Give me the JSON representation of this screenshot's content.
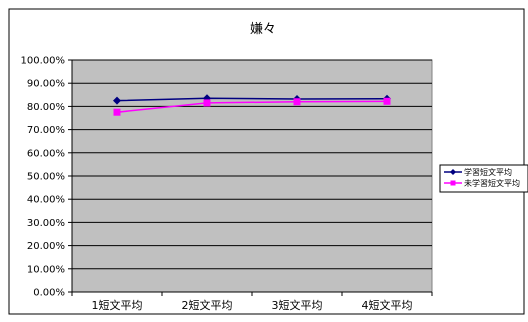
{
  "chart_data": {
    "type": "line",
    "title": "嫌々",
    "categories": [
      "1短文平均",
      "2短文平均",
      "3短文平均",
      "4短文平均"
    ],
    "ylim": [
      0,
      1
    ],
    "y_ticks": [
      "0.00%",
      "10.00%",
      "20.00%",
      "30.00%",
      "40.00%",
      "50.00%",
      "60.00%",
      "70.00%",
      "80.00%",
      "90.00%",
      "100.00%"
    ],
    "grid": true,
    "legend_position": "right",
    "plot_background": "#c0c0c0",
    "series": [
      {
        "name": "学習短文平均",
        "values": [
          0.825,
          0.835,
          0.832,
          0.833
        ],
        "color": "#000080",
        "marker": "diamond"
      },
      {
        "name": "未学習短文平均",
        "values": [
          0.775,
          0.815,
          0.82,
          0.822
        ],
        "color": "#ff00ff",
        "marker": "square"
      }
    ]
  }
}
